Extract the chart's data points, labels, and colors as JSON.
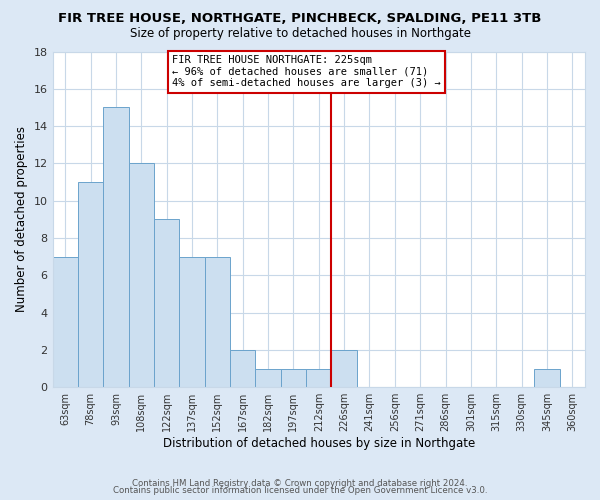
{
  "title": "FIR TREE HOUSE, NORTHGATE, PINCHBECK, SPALDING, PE11 3TB",
  "subtitle": "Size of property relative to detached houses in Northgate",
  "xlabel": "Distribution of detached houses by size in Northgate",
  "ylabel": "Number of detached properties",
  "bin_labels": [
    "63sqm",
    "78sqm",
    "93sqm",
    "108sqm",
    "122sqm",
    "137sqm",
    "152sqm",
    "167sqm",
    "182sqm",
    "197sqm",
    "212sqm",
    "226sqm",
    "241sqm",
    "256sqm",
    "271sqm",
    "286sqm",
    "301sqm",
    "315sqm",
    "330sqm",
    "345sqm",
    "360sqm"
  ],
  "bar_heights": [
    7,
    11,
    15,
    12,
    9,
    7,
    7,
    2,
    1,
    1,
    1,
    2,
    0,
    0,
    0,
    0,
    0,
    0,
    0,
    1,
    0
  ],
  "bar_color": "#ccdff0",
  "bar_edge_color": "#6ba3cc",
  "vline_color": "#cc0000",
  "annotation_text": "FIR TREE HOUSE NORTHGATE: 225sqm\n← 96% of detached houses are smaller (71)\n4% of semi-detached houses are larger (3) →",
  "annotation_box_color": "#ffffff",
  "annotation_box_edge": "#cc0000",
  "ylim": [
    0,
    18
  ],
  "yticks": [
    0,
    2,
    4,
    6,
    8,
    10,
    12,
    14,
    16,
    18
  ],
  "footer_line1": "Contains HM Land Registry data © Crown copyright and database right 2024.",
  "footer_line2": "Contains public sector information licensed under the Open Government Licence v3.0.",
  "bg_color": "#dce8f5",
  "plot_bg_color": "#ffffff",
  "grid_color": "#c8d8e8"
}
